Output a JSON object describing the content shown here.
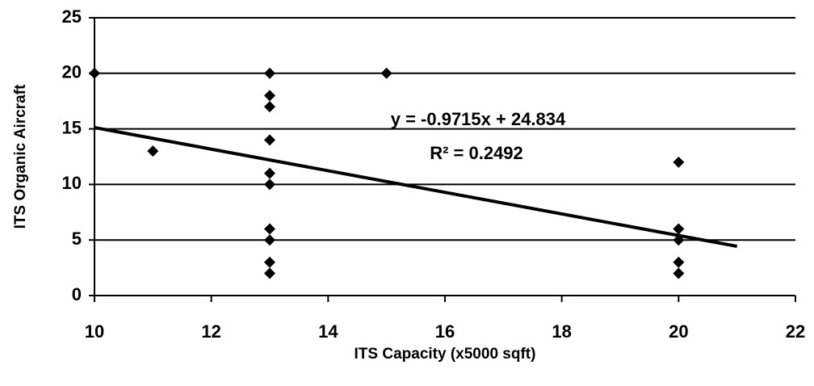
{
  "chart_data": {
    "type": "scatter",
    "x_label": "ITS Capacity (x5000 sqft)",
    "y_label": "ITS Organic Aircraft",
    "series": [
      {
        "color": "#000000",
        "x": [
          10,
          11,
          13,
          13,
          13,
          13,
          13,
          13,
          13,
          13,
          13,
          13,
          15,
          20,
          20,
          20,
          20,
          20
        ],
        "values": [
          20,
          13,
          20,
          18,
          17,
          14,
          11,
          10,
          6,
          5,
          3,
          2,
          20,
          12,
          6,
          5,
          3,
          2
        ]
      }
    ],
    "trendline": {
      "slope": -0.9715,
      "intercept": 24.834,
      "x_range": [
        10,
        21
      ],
      "color": "#000000",
      "equation": "y = -0.9715x + 24.834",
      "r_squared": "R² = 0.2492"
    },
    "xlim": [
      10,
      22
    ],
    "xticks": [
      10,
      12,
      14,
      16,
      18,
      20,
      22
    ],
    "ylim": [
      0,
      25
    ],
    "yticks": [
      0,
      5,
      10,
      15,
      20,
      25
    ],
    "grid": true
  }
}
